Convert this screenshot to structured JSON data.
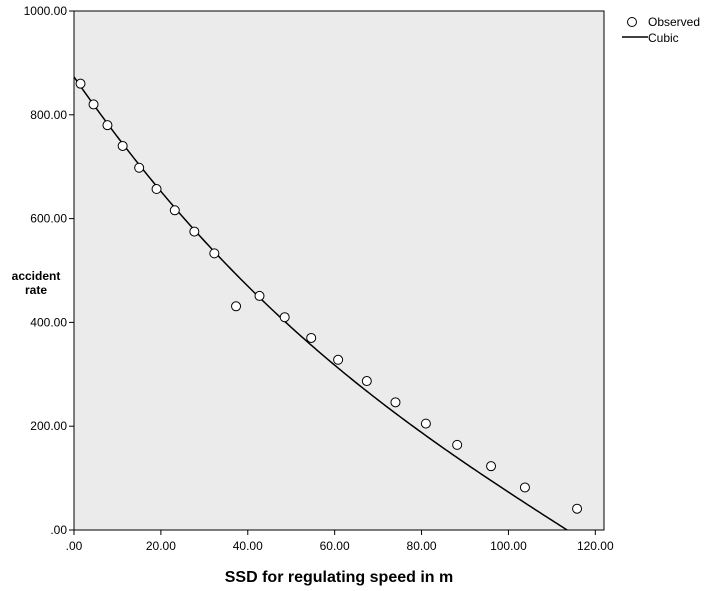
{
  "chart_data": {
    "type": "scatter",
    "xlabel": "SSD for regulating speed in m",
    "ylabel_lines": [
      "accident",
      "rate"
    ],
    "xlim": [
      0,
      122
    ],
    "ylim": [
      0,
      1000
    ],
    "x_ticks": [
      0,
      20,
      40,
      60,
      80,
      100,
      120
    ],
    "x_tick_labels": [
      ".00",
      "20.00",
      "40.00",
      "60.00",
      "80.00",
      "100.00",
      "120.00"
    ],
    "y_ticks": [
      0,
      200,
      400,
      600,
      800,
      1000
    ],
    "y_tick_labels": [
      ".00",
      "200.00",
      "400.00",
      "600.00",
      "800.00",
      "1000.00"
    ],
    "grid": false,
    "legend_position": "top-right-outside",
    "series": [
      {
        "name": "Observed",
        "kind": "points",
        "x": [
          1.5,
          4.5,
          7.7,
          11.2,
          15.0,
          19.0,
          23.2,
          27.7,
          32.3,
          37.3,
          42.7,
          48.5,
          54.6,
          60.8,
          67.4,
          74.0,
          81.0,
          88.2,
          96.0,
          103.8,
          115.8
        ],
        "y": [
          860,
          820,
          780,
          740,
          698,
          657,
          616,
          575,
          533,
          431,
          451,
          410,
          370,
          328,
          287,
          246,
          205,
          164,
          123,
          82,
          41
        ]
      },
      {
        "name": "Cubic",
        "kind": "curve",
        "coefficients": [
          873,
          -12.1,
          0.057,
          -0.00016
        ],
        "x_range": [
          0,
          121.6
        ]
      }
    ],
    "colors": {
      "plot_background": "#ebebeb",
      "line": "#000000",
      "marker_fill": "#ffffff",
      "marker_stroke": "#000000"
    }
  }
}
